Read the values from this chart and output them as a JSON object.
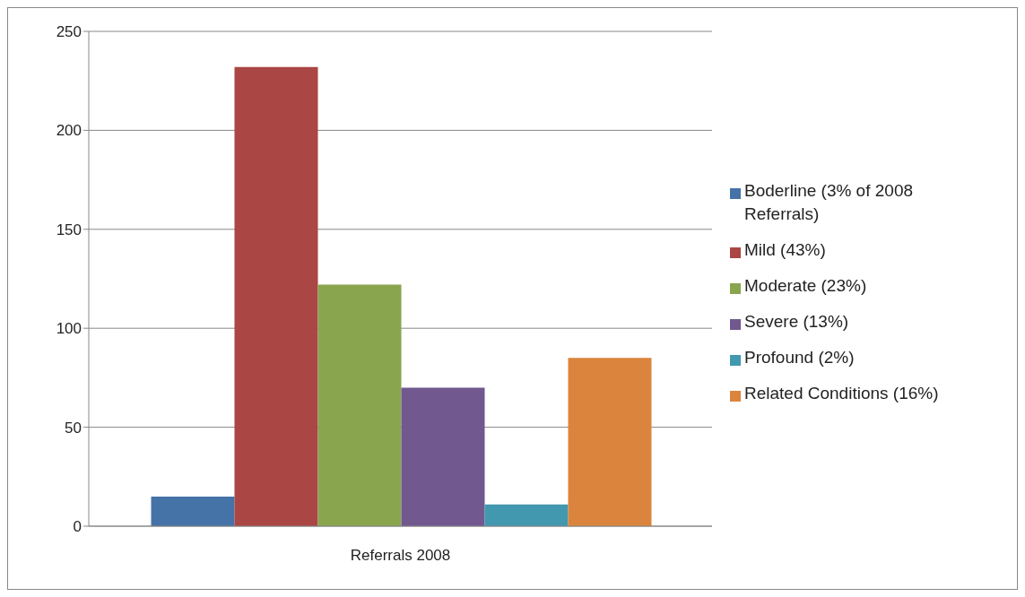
{
  "chart_data": {
    "type": "bar",
    "categories": [
      "Referrals 2008"
    ],
    "series": [
      {
        "name": "Boderline (3% of 2008 Referrals)",
        "color": "#4572a7",
        "values": [
          15
        ]
      },
      {
        "name": "Mild (43%)",
        "color": "#aa4643",
        "values": [
          232
        ]
      },
      {
        "name": "Moderate (23%)",
        "color": "#89a54e",
        "values": [
          122
        ]
      },
      {
        "name": "Severe (13%)",
        "color": "#71588f",
        "values": [
          70
        ]
      },
      {
        "name": "Profound (2%)",
        "color": "#4198af",
        "values": [
          11
        ]
      },
      {
        "name": "Related Conditions (16%)",
        "color": "#db843d",
        "values": [
          85
        ]
      }
    ],
    "ylim": [
      0,
      250
    ],
    "yticks": [
      0,
      50,
      100,
      150,
      200,
      250
    ],
    "grid": "y",
    "legend": "right"
  }
}
